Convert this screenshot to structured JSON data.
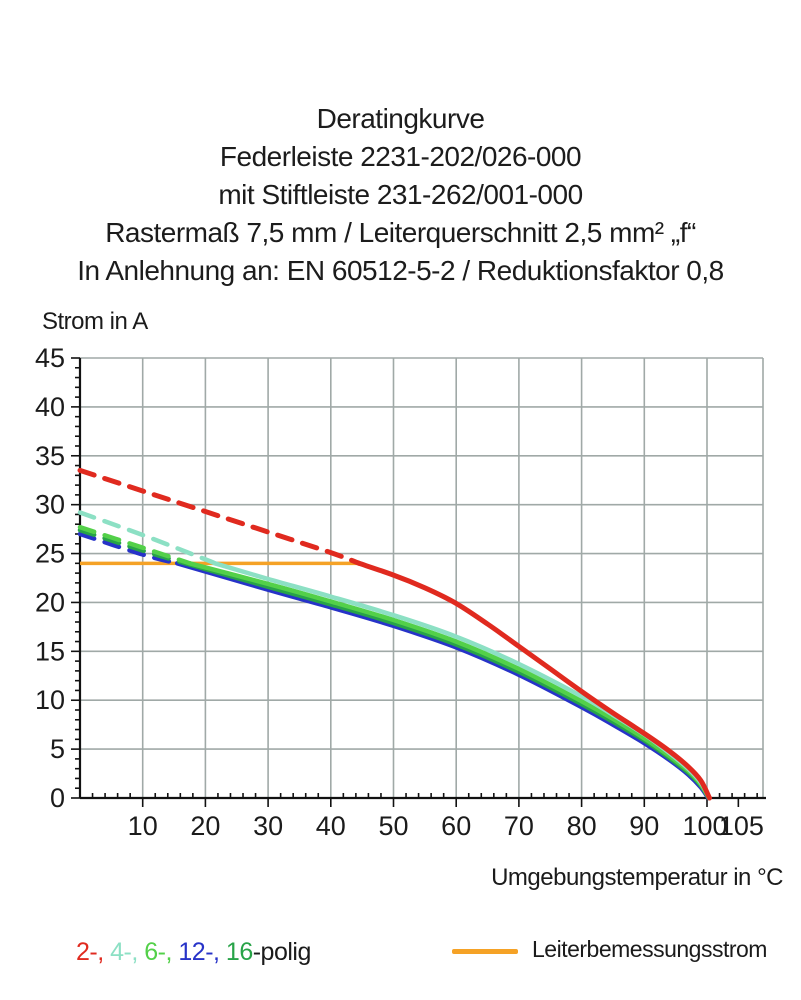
{
  "title": {
    "lines": [
      "Deratingkurve",
      "Federleiste 2231-202/026-000",
      "mit Stiftleiste 231-262/001-000",
      "Rastermaß 7,5 mm / Leiterquerschnitt 2,5 mm² „f“",
      "In Anlehnung an: EN 60512-5-2 / Reduktionsfaktor 0,8"
    ]
  },
  "chart": {
    "y_axis_label": "Strom in A",
    "x_axis_label": "Umgebungstemperatur in °C"
  },
  "legend": {
    "series_items": [
      {
        "label": "2-,",
        "color": "#e02a1f"
      },
      {
        "label": "4-,",
        "color": "#8ce0c4"
      },
      {
        "label": "6-,",
        "color": "#53d049"
      },
      {
        "label": "12-,",
        "color": "#2733c8"
      },
      {
        "label": "16",
        "color": "#28a348"
      }
    ],
    "series_suffix": "-polig",
    "rated_current_label": "Leiterbemessungsstrom",
    "rated_current_color": "#f5a226"
  },
  "chart_data": {
    "type": "line",
    "title": "Deratingkurve Federleiste 2231-202/026-000 mit Stiftleiste 231-262/001-000",
    "xlabel": "Umgebungstemperatur in °C",
    "ylabel": "Strom in A",
    "xlim": [
      0,
      109
    ],
    "ylim": [
      0,
      45
    ],
    "grid": true,
    "x_tick_labels": [
      10,
      20,
      30,
      40,
      50,
      60,
      70,
      80,
      90,
      100,
      105
    ],
    "y_tick_labels": [
      0,
      5,
      10,
      15,
      20,
      25,
      30,
      35,
      40,
      45
    ],
    "x_minor_step": 2,
    "y_minor_step": 1,
    "grid_color": "#a0a9a7",
    "rated_current": {
      "label": "Leiterbemessungsstrom",
      "value_A": 24,
      "span_T": [
        0,
        44.5
      ],
      "color": "#f5a226"
    },
    "dash_note": "curve segments above the rated current (24 A) are dashed",
    "series": [
      {
        "name": "12-polig",
        "color": "#2733c8",
        "width": 4.5,
        "dash_until_T": 15.5,
        "points": [
          [
            0,
            27.0
          ],
          [
            10,
            24.9
          ],
          [
            15.5,
            24.0
          ],
          [
            30,
            21.3
          ],
          [
            40,
            19.5
          ],
          [
            50,
            17.6
          ],
          [
            60,
            15.4
          ],
          [
            70,
            12.6
          ],
          [
            80,
            9.3
          ],
          [
            85,
            7.5
          ],
          [
            90,
            5.6
          ],
          [
            94,
            3.9
          ],
          [
            97,
            2.4
          ],
          [
            99,
            1.1
          ],
          [
            100.2,
            0
          ]
        ]
      },
      {
        "name": "16-polig",
        "color": "#28a348",
        "width": 4.5,
        "dash_until_T": 16.8,
        "points": [
          [
            0,
            27.4
          ],
          [
            10,
            25.3
          ],
          [
            16.8,
            24.0
          ],
          [
            30,
            21.6
          ],
          [
            40,
            19.8
          ],
          [
            50,
            17.9
          ],
          [
            60,
            15.7
          ],
          [
            70,
            12.9
          ],
          [
            80,
            9.6
          ],
          [
            85,
            7.8
          ],
          [
            90,
            5.9
          ],
          [
            94,
            4.1
          ],
          [
            97,
            2.6
          ],
          [
            99,
            1.3
          ],
          [
            100.3,
            0
          ]
        ]
      },
      {
        "name": "6-polig",
        "color": "#53d049",
        "width": 4.5,
        "dash_until_T": 17.5,
        "points": [
          [
            0,
            27.7
          ],
          [
            10,
            25.6
          ],
          [
            17.5,
            24.0
          ],
          [
            30,
            21.9
          ],
          [
            40,
            20.1
          ],
          [
            50,
            18.2
          ],
          [
            60,
            16.0
          ],
          [
            70,
            13.2
          ],
          [
            80,
            9.9
          ],
          [
            85,
            8.1
          ],
          [
            90,
            6.1
          ],
          [
            94,
            4.3
          ],
          [
            97,
            2.8
          ],
          [
            99,
            1.4
          ],
          [
            100.3,
            0
          ]
        ]
      },
      {
        "name": "4-polig",
        "color": "#8ce0c4",
        "width": 4.5,
        "dash_until_T": 21.5,
        "points": [
          [
            0,
            29.2
          ],
          [
            10,
            26.9
          ],
          [
            20,
            24.4
          ],
          [
            21.5,
            24.0
          ],
          [
            30,
            22.4
          ],
          [
            40,
            20.6
          ],
          [
            50,
            18.7
          ],
          [
            60,
            16.5
          ],
          [
            70,
            13.7
          ],
          [
            80,
            10.4
          ],
          [
            85,
            8.5
          ],
          [
            90,
            6.5
          ],
          [
            94,
            4.6
          ],
          [
            97,
            3.0
          ],
          [
            99,
            1.6
          ],
          [
            100.4,
            0
          ]
        ]
      },
      {
        "name": "2-polig",
        "color": "#e02a1f",
        "width": 5,
        "dash_until_T": 44.5,
        "points": [
          [
            0,
            33.5
          ],
          [
            10,
            31.4
          ],
          [
            20,
            29.3
          ],
          [
            30,
            27.2
          ],
          [
            40,
            25.1
          ],
          [
            44.5,
            24.0
          ],
          [
            50,
            22.8
          ],
          [
            55,
            21.5
          ],
          [
            60,
            19.9
          ],
          [
            65,
            17.8
          ],
          [
            70,
            15.5
          ],
          [
            75,
            13.2
          ],
          [
            80,
            10.9
          ],
          [
            85,
            8.7
          ],
          [
            90,
            6.6
          ],
          [
            94,
            4.8
          ],
          [
            97,
            3.2
          ],
          [
            99,
            1.8
          ],
          [
            100.4,
            0
          ]
        ]
      }
    ]
  }
}
